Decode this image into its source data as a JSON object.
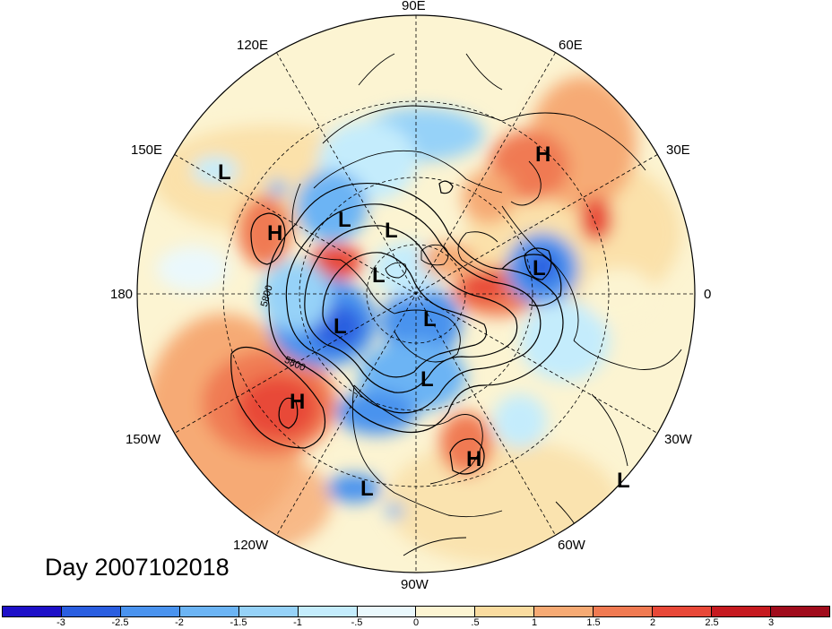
{
  "title": "Day 2007102018",
  "longitude_labels": {
    "e90": "90E",
    "e60": "60E",
    "e120": "120E",
    "e150": "150E",
    "e30": "30E",
    "lon180": "180",
    "lon0": "0",
    "w150": "150W",
    "w30": "30W",
    "w120": "120W",
    "w60": "60W",
    "w90": "90W"
  },
  "contour_labels": [
    "5800",
    "5800"
  ],
  "pressure_centers": [
    {
      "type": "H",
      "label": "H"
    },
    {
      "type": "H",
      "label": "H"
    },
    {
      "type": "H",
      "label": "H"
    },
    {
      "type": "H",
      "label": "H"
    },
    {
      "type": "L",
      "label": "L"
    },
    {
      "type": "L",
      "label": "L"
    },
    {
      "type": "L",
      "label": "L"
    },
    {
      "type": "L",
      "label": "L"
    },
    {
      "type": "L",
      "label": "L"
    },
    {
      "type": "L",
      "label": "L"
    },
    {
      "type": "L",
      "label": "L"
    },
    {
      "type": "L",
      "label": "L"
    },
    {
      "type": "L",
      "label": "L"
    },
    {
      "type": "L",
      "label": "L"
    }
  ],
  "colorbar": {
    "colors": [
      "#1e10c8",
      "#2a5ee0",
      "#4a93ee",
      "#6cb4f4",
      "#96d2f8",
      "#c4ecfc",
      "#eaf8fc",
      "#fcf4d2",
      "#fadca0",
      "#f6aa74",
      "#f07a52",
      "#e84838",
      "#c61a20",
      "#a00c1c"
    ],
    "tick_labels": [
      "-3",
      "-2.5",
      "-2",
      "-1.5",
      "-1",
      "-.5",
      "0",
      ".5",
      "1",
      "1.5",
      "2",
      "2.5",
      "3"
    ]
  }
}
